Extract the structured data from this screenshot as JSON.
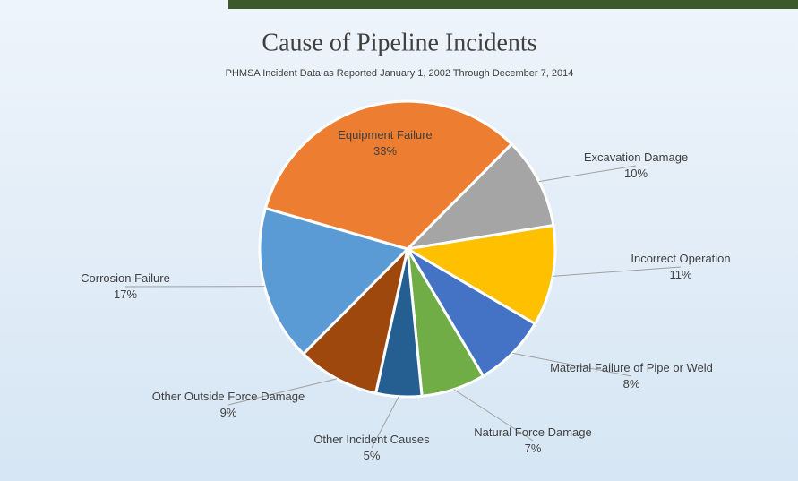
{
  "chart_data": {
    "type": "pie",
    "title": "Cause of Pipeline Incidents",
    "subtitle": "PHMSA Incident Data as Reported January 1, 2002 Through December 7, 2014",
    "categories": [
      "Equipment Failure",
      "Excavation Damage",
      "Incorrect Operation",
      "Material Failure of Pipe or Weld",
      "Natural Force Damage",
      "Other Incident Causes",
      "Other Outside Force Damage",
      "Corrosion Failure"
    ],
    "values": [
      33,
      10,
      11,
      8,
      7,
      5,
      9,
      17
    ],
    "value_labels": [
      "33%",
      "10%",
      "11%",
      "8%",
      "7%",
      "5%",
      "9%",
      "17%"
    ],
    "colors": [
      "#ed7d31",
      "#a5a5a5",
      "#ffc000",
      "#4472c4",
      "#70ad47",
      "#255e91",
      "#9e480e",
      "#5b9bd5"
    ]
  }
}
